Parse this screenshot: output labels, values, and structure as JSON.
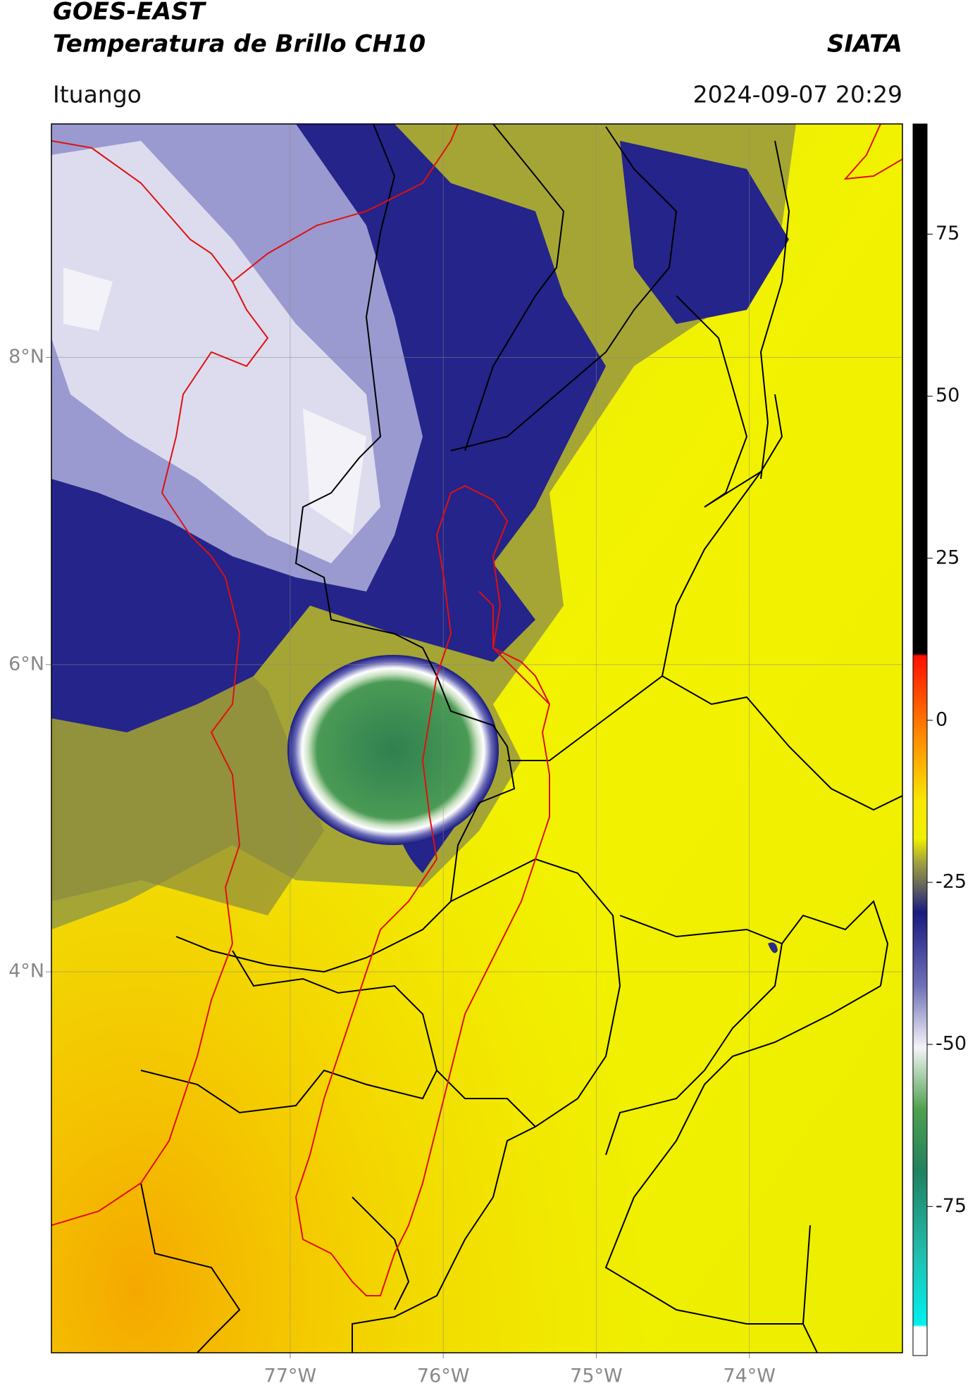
{
  "header": {
    "title": "GOES-EAST",
    "subtitle": "Temperatura de Brillo CH10",
    "source": "SIATA",
    "location": "Ituango",
    "datetime": "2024-09-07 20:29"
  },
  "map": {
    "xlim": [
      -78.56,
      -73.0
    ],
    "ylim": [
      1.52,
      9.52
    ],
    "xticks": [
      {
        "value": -77,
        "label": "77°W"
      },
      {
        "value": -76,
        "label": "76°W"
      },
      {
        "value": -75,
        "label": "75°W"
      },
      {
        "value": -74,
        "label": "74°W"
      }
    ],
    "yticks": [
      {
        "value": 8,
        "label": "8°N"
      },
      {
        "value": 6,
        "label": "6°N"
      },
      {
        "value": 4,
        "label": "4°N"
      }
    ],
    "grid": true
  },
  "colorbar": {
    "ylim": [
      -98,
      92
    ],
    "yticks": [
      75,
      50,
      25,
      0,
      -25,
      -50,
      -75
    ]
  }
}
